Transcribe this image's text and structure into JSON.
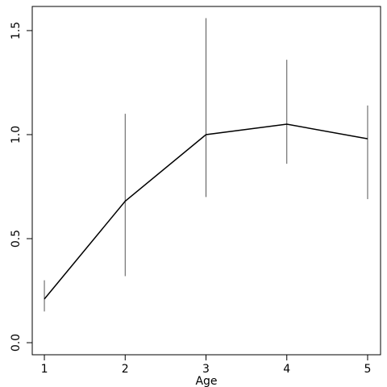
{
  "chart_data": {
    "type": "line",
    "x_label": "Age",
    "x": [
      1,
      2,
      3,
      4,
      5
    ],
    "series": [
      {
        "color": "#000000",
        "values": [
          0.21,
          0.68,
          1.0,
          1.05,
          0.98
        ],
        "lower": [
          0.15,
          0.32,
          0.7,
          0.86,
          0.69
        ],
        "upper": [
          0.3,
          1.1,
          1.56,
          1.36,
          1.14
        ]
      }
    ],
    "xlim": [
      0.85,
      5.16
    ],
    "ylim": [
      -0.058,
      1.616
    ],
    "xticks": [
      1,
      2,
      3,
      4,
      5
    ],
    "yticks": [
      {
        "value": 0,
        "label": "0.0"
      },
      {
        "value": 0.5,
        "label": "0.5"
      },
      {
        "value": 1,
        "label": "1.0"
      },
      {
        "value": 1.5,
        "label": "1.5"
      }
    ]
  }
}
